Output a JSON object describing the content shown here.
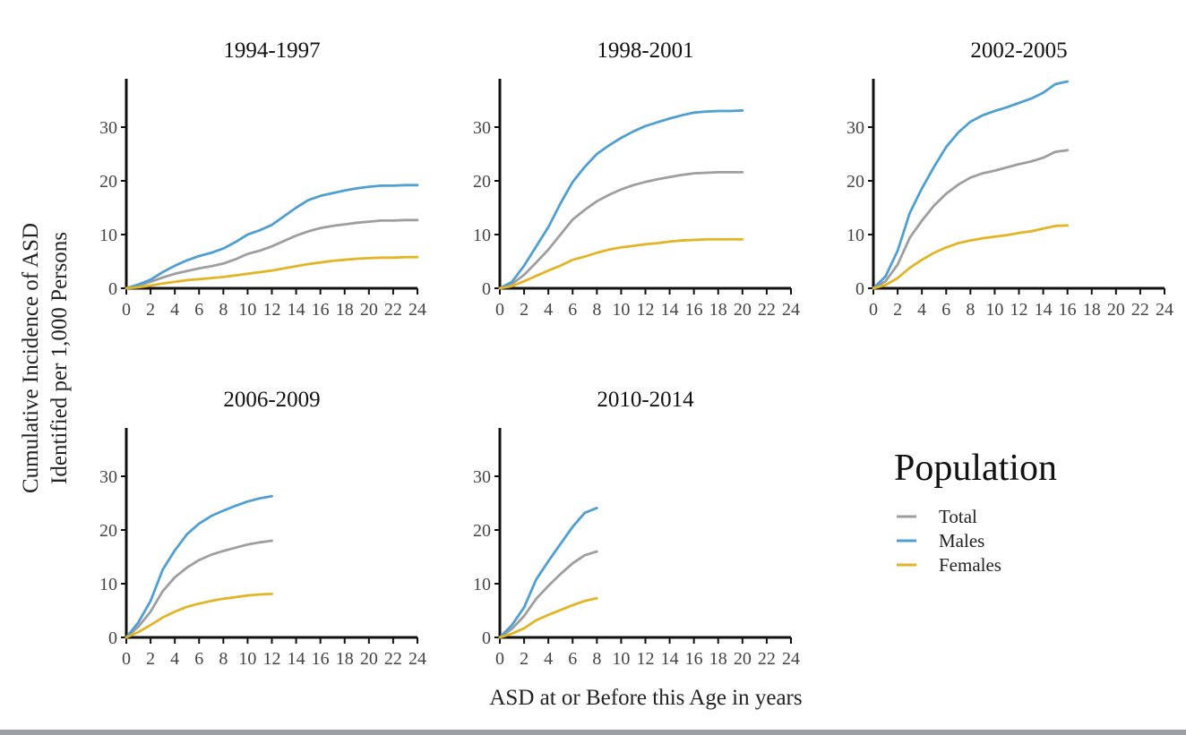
{
  "figure": {
    "ylabel_line1": "Cumulative Incidence of ASD",
    "ylabel_line2": "Identified per 1,000 Persons",
    "xlabel": "ASD at or Before this Age in years"
  },
  "legend": {
    "title": "Population",
    "entries": [
      {
        "name": "Total",
        "color": "#9e9e9e"
      },
      {
        "name": "Males",
        "color": "#4f9fd1"
      },
      {
        "name": "Females",
        "color": "#e2b526"
      }
    ]
  },
  "chart_data": [
    {
      "type": "line",
      "title": "1994-1997",
      "xlim": [
        0,
        24
      ],
      "ylim": [
        0,
        39
      ],
      "xticks": [
        "0",
        "2",
        "4",
        "6",
        "8",
        "10",
        "12",
        "14",
        "16",
        "18",
        "20",
        "22",
        "24"
      ],
      "yticks": [
        "0",
        "10",
        "20",
        "30"
      ],
      "grid": false,
      "series": [
        {
          "name": "Total",
          "x": [
            0,
            1,
            2,
            3,
            4,
            5,
            6,
            7,
            8,
            9,
            10,
            11,
            12,
            13,
            14,
            15,
            16,
            17,
            18,
            19,
            20,
            21,
            22,
            23,
            24
          ],
          "y": [
            0,
            0.5,
            1.2,
            2.0,
            2.7,
            3.2,
            3.7,
            4.1,
            4.6,
            5.4,
            6.4,
            7.0,
            7.8,
            8.8,
            9.8,
            10.6,
            11.2,
            11.6,
            11.9,
            12.2,
            12.4,
            12.6,
            12.6,
            12.7,
            12.7
          ]
        },
        {
          "name": "Males",
          "x": [
            0,
            1,
            2,
            3,
            4,
            5,
            6,
            7,
            8,
            9,
            10,
            11,
            12,
            13,
            14,
            15,
            16,
            17,
            18,
            19,
            20,
            21,
            22,
            23,
            24
          ],
          "y": [
            0,
            0.7,
            1.6,
            3.0,
            4.2,
            5.2,
            6.0,
            6.6,
            7.4,
            8.6,
            10.0,
            10.8,
            11.8,
            13.4,
            15.0,
            16.4,
            17.2,
            17.7,
            18.2,
            18.6,
            18.9,
            19.1,
            19.1,
            19.2,
            19.2
          ]
        },
        {
          "name": "Females",
          "x": [
            0,
            1,
            2,
            3,
            4,
            5,
            6,
            7,
            8,
            9,
            10,
            11,
            12,
            13,
            14,
            15,
            16,
            17,
            18,
            19,
            20,
            21,
            22,
            23,
            24
          ],
          "y": [
            0,
            0.2,
            0.5,
            0.9,
            1.2,
            1.5,
            1.7,
            1.9,
            2.1,
            2.4,
            2.7,
            3.0,
            3.3,
            3.7,
            4.1,
            4.5,
            4.8,
            5.1,
            5.3,
            5.5,
            5.6,
            5.7,
            5.7,
            5.8,
            5.8
          ]
        }
      ]
    },
    {
      "type": "line",
      "title": "1998-2001",
      "xlim": [
        0,
        24
      ],
      "ylim": [
        0,
        39
      ],
      "xticks": [
        "0",
        "2",
        "4",
        "6",
        "8",
        "10",
        "12",
        "14",
        "16",
        "18",
        "20",
        "22",
        "24"
      ],
      "yticks": [
        "0",
        "10",
        "20",
        "30"
      ],
      "grid": false,
      "series": [
        {
          "name": "Total",
          "x": [
            0,
            1,
            2,
            3,
            4,
            5,
            6,
            7,
            8,
            9,
            10,
            11,
            12,
            13,
            14,
            15,
            16,
            17,
            18,
            19,
            20
          ],
          "y": [
            0,
            0.8,
            2.5,
            4.8,
            7.2,
            10.0,
            12.8,
            14.6,
            16.2,
            17.4,
            18.4,
            19.2,
            19.8,
            20.3,
            20.7,
            21.1,
            21.4,
            21.5,
            21.6,
            21.6,
            21.6
          ]
        },
        {
          "name": "Males",
          "x": [
            0,
            1,
            2,
            3,
            4,
            5,
            6,
            7,
            8,
            9,
            10,
            11,
            12,
            13,
            14,
            15,
            16,
            17,
            18,
            19,
            20
          ],
          "y": [
            0,
            1.2,
            4.2,
            7.8,
            11.4,
            15.8,
            19.8,
            22.6,
            25.0,
            26.6,
            28.0,
            29.2,
            30.2,
            30.9,
            31.6,
            32.2,
            32.7,
            32.9,
            33.0,
            33.0,
            33.1
          ]
        },
        {
          "name": "Females",
          "x": [
            0,
            1,
            2,
            3,
            4,
            5,
            6,
            7,
            8,
            9,
            10,
            11,
            12,
            13,
            14,
            15,
            16,
            17,
            18,
            19,
            20
          ],
          "y": [
            0,
            0.4,
            1.3,
            2.3,
            3.3,
            4.2,
            5.3,
            5.9,
            6.6,
            7.2,
            7.6,
            7.9,
            8.2,
            8.4,
            8.7,
            8.9,
            9.0,
            9.1,
            9.1,
            9.1,
            9.1
          ]
        }
      ]
    },
    {
      "type": "line",
      "title": "2002-2005",
      "xlim": [
        0,
        24
      ],
      "ylim": [
        0,
        39
      ],
      "xticks": [
        "0",
        "2",
        "4",
        "6",
        "8",
        "10",
        "12",
        "14",
        "16",
        "18",
        "20",
        "22",
        "24"
      ],
      "yticks": [
        "0",
        "10",
        "20",
        "30"
      ],
      "grid": false,
      "series": [
        {
          "name": "Total",
          "x": [
            0,
            1,
            2,
            3,
            4,
            5,
            6,
            7,
            8,
            9,
            10,
            11,
            12,
            13,
            14,
            15,
            16
          ],
          "y": [
            0,
            1.3,
            4.4,
            9.4,
            12.6,
            15.4,
            17.6,
            19.3,
            20.6,
            21.4,
            21.9,
            22.5,
            23.1,
            23.6,
            24.3,
            25.4,
            25.7
          ]
        },
        {
          "name": "Males",
          "x": [
            0,
            1,
            2,
            3,
            4,
            5,
            6,
            7,
            8,
            9,
            10,
            11,
            12,
            13,
            14,
            15,
            16
          ],
          "y": [
            0,
            2.2,
            7.0,
            14.0,
            18.6,
            22.6,
            26.3,
            29.0,
            31.0,
            32.2,
            33.0,
            33.7,
            34.5,
            35.3,
            36.4,
            38.0,
            38.5
          ]
        },
        {
          "name": "Females",
          "x": [
            0,
            1,
            2,
            3,
            4,
            5,
            6,
            7,
            8,
            9,
            10,
            11,
            12,
            13,
            14,
            15,
            16
          ],
          "y": [
            0,
            0.6,
            1.9,
            3.8,
            5.3,
            6.6,
            7.6,
            8.4,
            8.9,
            9.3,
            9.6,
            9.9,
            10.3,
            10.6,
            11.1,
            11.6,
            11.7
          ]
        }
      ]
    },
    {
      "type": "line",
      "title": "2006-2009",
      "xlim": [
        0,
        24
      ],
      "ylim": [
        0,
        39
      ],
      "xticks": [
        "0",
        "2",
        "4",
        "6",
        "8",
        "10",
        "12",
        "14",
        "16",
        "18",
        "20",
        "22",
        "24"
      ],
      "yticks": [
        "0",
        "10",
        "20",
        "30"
      ],
      "grid": false,
      "series": [
        {
          "name": "Total",
          "x": [
            0,
            1,
            2,
            3,
            4,
            5,
            6,
            7,
            8,
            9,
            10,
            11,
            12
          ],
          "y": [
            0,
            2.0,
            4.8,
            8.6,
            11.2,
            13.0,
            14.4,
            15.4,
            16.1,
            16.7,
            17.3,
            17.7,
            18.0
          ]
        },
        {
          "name": "Males",
          "x": [
            0,
            1,
            2,
            3,
            4,
            5,
            6,
            7,
            8,
            9,
            10,
            11,
            12
          ],
          "y": [
            0,
            2.8,
            6.8,
            12.6,
            16.2,
            19.2,
            21.2,
            22.6,
            23.6,
            24.5,
            25.3,
            25.9,
            26.3
          ]
        },
        {
          "name": "Females",
          "x": [
            0,
            1,
            2,
            3,
            4,
            5,
            6,
            7,
            8,
            9,
            10,
            11,
            12
          ],
          "y": [
            0,
            1.0,
            2.3,
            3.7,
            4.8,
            5.7,
            6.3,
            6.8,
            7.2,
            7.5,
            7.8,
            8.0,
            8.1
          ]
        }
      ]
    },
    {
      "type": "line",
      "title": "2010-2014",
      "xlim": [
        0,
        24
      ],
      "ylim": [
        0,
        39
      ],
      "xticks": [
        "0",
        "2",
        "4",
        "6",
        "8",
        "10",
        "12",
        "14",
        "16",
        "18",
        "20",
        "22",
        "24"
      ],
      "yticks": [
        "0",
        "10",
        "20",
        "30"
      ],
      "grid": false,
      "series": [
        {
          "name": "Total",
          "x": [
            0,
            1,
            2,
            3,
            4,
            5,
            6,
            7,
            8
          ],
          "y": [
            0,
            1.6,
            4.0,
            7.2,
            9.6,
            11.8,
            13.8,
            15.3,
            16.0
          ]
        },
        {
          "name": "Males",
          "x": [
            0,
            1,
            2,
            3,
            4,
            5,
            6,
            7,
            8
          ],
          "y": [
            0,
            2.3,
            5.6,
            10.8,
            14.2,
            17.4,
            20.6,
            23.2,
            24.1
          ]
        },
        {
          "name": "Females",
          "x": [
            0,
            1,
            2,
            3,
            4,
            5,
            6,
            7,
            8
          ],
          "y": [
            0,
            0.7,
            1.7,
            3.2,
            4.2,
            5.1,
            6.0,
            6.8,
            7.3
          ]
        }
      ]
    }
  ]
}
